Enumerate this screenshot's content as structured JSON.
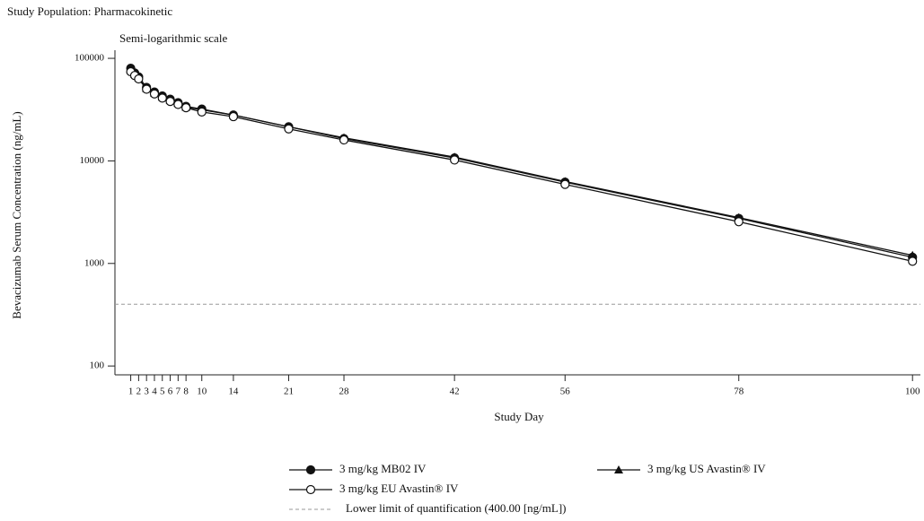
{
  "chart_data": {
    "type": "line",
    "title": "Study Population: Pharmacokinetic",
    "subtitle": "Semi-logarithmic scale",
    "x_label": "Study Day",
    "y_label": "Bevacizumab Serum Concentration (ng/mL)",
    "log_y": true,
    "grid": false,
    "x": [
      1,
      1.5,
      2,
      3,
      4,
      5,
      6,
      7,
      8,
      10,
      14,
      21,
      28,
      42,
      56,
      78,
      100
    ],
    "series": [
      {
        "name": "3 mg/kg MB02 IV",
        "color": "#111111",
        "marker": "circle-filled",
        "values": [
          80000,
          72000,
          66000,
          52000,
          47000,
          43000,
          40000,
          37000,
          34000,
          32000,
          28000,
          21500,
          16500,
          10700,
          6200,
          2750,
          1150
        ]
      },
      {
        "name": "3 mg/kg US Avastin® IV",
        "color": "#111111",
        "marker": "triangle",
        "values": [
          77000,
          70000,
          65000,
          51000,
          46000,
          42000,
          39000,
          36500,
          33500,
          31500,
          28000,
          21500,
          16800,
          10900,
          6300,
          2800,
          1200
        ]
      },
      {
        "name": "3 mg/kg EU Avastin® IV",
        "color": "#111111",
        "marker": "circle-open",
        "values": [
          74000,
          68000,
          63000,
          50000,
          45000,
          41000,
          38000,
          35500,
          33000,
          30000,
          27000,
          20500,
          16000,
          10200,
          5900,
          2550,
          1050
        ]
      }
    ],
    "reference_line": {
      "name": "Lower limit of quantification (400.00 [ng/mL])",
      "value": 400,
      "color": "#999999"
    },
    "xlim": [
      -1,
      101
    ],
    "ylim": [
      82,
      120000
    ],
    "xticks": [
      1,
      2,
      3,
      4,
      5,
      6,
      7,
      8,
      10,
      14,
      21,
      28,
      42,
      56,
      78,
      100
    ],
    "yticks": [
      100,
      1000,
      10000,
      100000
    ]
  }
}
